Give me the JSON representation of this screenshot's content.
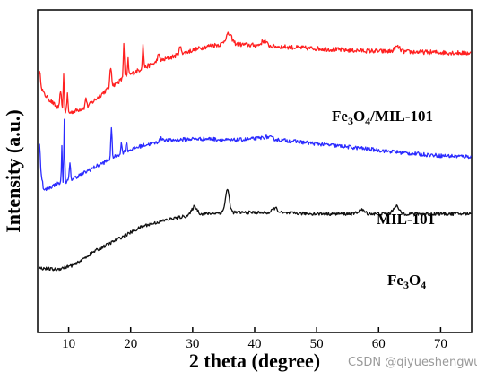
{
  "chart_data": {
    "type": "line",
    "xlabel": "2 theta (degree)",
    "ylabel": "Intensity (a.u.)",
    "xlim": [
      5,
      75
    ],
    "x_ticks": [
      10,
      20,
      30,
      40,
      50,
      60,
      70
    ],
    "y_ticks": "none",
    "grid": false,
    "colors": {
      "Fe3O4/MIL-101": "#ff2020",
      "MIL-101": "#2b2bff",
      "Fe3O4": "#111111"
    },
    "labels": [
      {
        "series": "Fe3O4/MIL-101",
        "parts": [
          [
            "Fe",
            false
          ],
          [
            "3",
            true
          ],
          [
            "O",
            false
          ],
          [
            "4",
            true
          ],
          [
            "/MIL-101",
            false
          ]
        ]
      },
      {
        "series": "MIL-101",
        "parts": [
          [
            "MIL-101",
            false
          ]
        ]
      },
      {
        "series": "Fe3O4",
        "parts": [
          [
            "Fe",
            false
          ],
          [
            "3",
            true
          ],
          [
            "O",
            false
          ],
          [
            "4",
            true
          ]
        ]
      }
    ],
    "series": [
      {
        "name": "Fe3O4/MIL-101",
        "baseline": [
          [
            5.2,
            0.78
          ],
          [
            6,
            0.74
          ],
          [
            8,
            0.7
          ],
          [
            10,
            0.68
          ],
          [
            13,
            0.7
          ],
          [
            16,
            0.75
          ],
          [
            19,
            0.79
          ],
          [
            22,
            0.82
          ],
          [
            26,
            0.85
          ],
          [
            30,
            0.875
          ],
          [
            33,
            0.89
          ],
          [
            36,
            0.895
          ],
          [
            40,
            0.89
          ],
          [
            45,
            0.885
          ],
          [
            50,
            0.88
          ],
          [
            55,
            0.875
          ],
          [
            60,
            0.872
          ],
          [
            65,
            0.87
          ],
          [
            70,
            0.868
          ],
          [
            75,
            0.866
          ]
        ],
        "peaks": [
          [
            5.3,
            0.03,
            0.25
          ],
          [
            8.7,
            0.06,
            0.15
          ],
          [
            9.2,
            0.11,
            0.12
          ],
          [
            9.8,
            0.06,
            0.12
          ],
          [
            12.8,
            0.03,
            0.15
          ],
          [
            16.8,
            0.06,
            0.2
          ],
          [
            18.9,
            0.11,
            0.12
          ],
          [
            19.6,
            0.05,
            0.12
          ],
          [
            22.0,
            0.07,
            0.15
          ],
          [
            24.5,
            0.02,
            0.3
          ],
          [
            28.0,
            0.02,
            0.3
          ],
          [
            35.8,
            0.03,
            0.7
          ],
          [
            41.5,
            0.015,
            0.6
          ],
          [
            63.0,
            0.015,
            0.6
          ]
        ],
        "noise": 0.007
      },
      {
        "name": "MIL-101",
        "baseline": [
          [
            5.2,
            0.54
          ],
          [
            6,
            0.44
          ],
          [
            8,
            0.46
          ],
          [
            10,
            0.47
          ],
          [
            13,
            0.5
          ],
          [
            16,
            0.53
          ],
          [
            19,
            0.56
          ],
          [
            22,
            0.58
          ],
          [
            26,
            0.595
          ],
          [
            30,
            0.6
          ],
          [
            33,
            0.6
          ],
          [
            36,
            0.595
          ],
          [
            40,
            0.6
          ],
          [
            45,
            0.595
          ],
          [
            50,
            0.585
          ],
          [
            55,
            0.575
          ],
          [
            60,
            0.565
          ],
          [
            65,
            0.555
          ],
          [
            70,
            0.548
          ],
          [
            75,
            0.545
          ]
        ],
        "peaks": [
          [
            5.3,
            0.06,
            0.15
          ],
          [
            8.9,
            0.11,
            0.1
          ],
          [
            9.3,
            0.19,
            0.1
          ],
          [
            10.2,
            0.05,
            0.15
          ],
          [
            16.9,
            0.09,
            0.15
          ],
          [
            18.5,
            0.03,
            0.15
          ],
          [
            19.3,
            0.03,
            0.15
          ],
          [
            25.0,
            0.01,
            0.5
          ],
          [
            42.0,
            0.008,
            1.2
          ]
        ],
        "noise": 0.006
      },
      {
        "name": "Fe3O4",
        "baseline": [
          [
            5.2,
            0.2
          ],
          [
            8,
            0.195
          ],
          [
            11,
            0.21
          ],
          [
            14,
            0.25
          ],
          [
            18,
            0.29
          ],
          [
            22,
            0.33
          ],
          [
            26,
            0.35
          ],
          [
            30,
            0.365
          ],
          [
            35,
            0.372
          ],
          [
            40,
            0.372
          ],
          [
            45,
            0.37
          ],
          [
            50,
            0.368
          ],
          [
            55,
            0.368
          ],
          [
            60,
            0.368
          ],
          [
            65,
            0.368
          ],
          [
            70,
            0.368
          ],
          [
            75,
            0.368
          ]
        ],
        "peaks": [
          [
            30.3,
            0.025,
            0.6
          ],
          [
            35.6,
            0.07,
            0.45
          ],
          [
            43.3,
            0.015,
            0.6
          ],
          [
            57.2,
            0.012,
            0.7
          ],
          [
            62.8,
            0.025,
            0.6
          ]
        ],
        "noise": 0.005
      }
    ]
  }
}
